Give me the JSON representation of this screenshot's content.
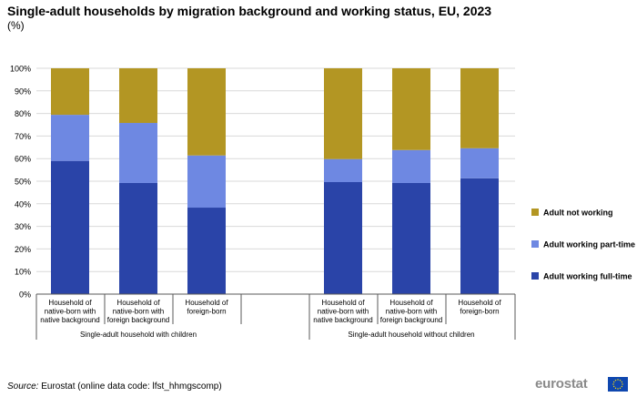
{
  "header": {
    "title": "Single-adult households by migration background and working status, EU, 2023",
    "unit": "(%)"
  },
  "footer": {
    "source_label": "Source:",
    "source_text": " Eurostat (online data code: lfst_hhmgscomp)",
    "logo_text": "eurostat"
  },
  "colors": {
    "full_time": "#2a44a8",
    "part_time": "#6e88e2",
    "not_working": "#b39623",
    "grid": "#d9d9d9",
    "axis": "#595959"
  },
  "chart_data": {
    "type": "bar",
    "stacked": true,
    "ylim": [
      0,
      100
    ],
    "yticks": [
      "0%",
      "10%",
      "20%",
      "30%",
      "40%",
      "50%",
      "60%",
      "70%",
      "80%",
      "90%",
      "100%"
    ],
    "grid": true,
    "legend_position": "right",
    "categories": [
      [
        "Household of",
        "native-born with",
        "native background"
      ],
      [
        "Household of",
        "native-born with",
        "foreign background"
      ],
      [
        "Household of",
        "foreign-born"
      ],
      [
        "Household of",
        "native-born with",
        "native background"
      ],
      [
        "Household of",
        "native-born with",
        "foreign background"
      ],
      [
        "Household of",
        "foreign-born"
      ]
    ],
    "groups": [
      {
        "label": "Single-adult household with children",
        "indices": [
          0,
          1,
          2
        ]
      },
      {
        "label": "Single-adult household without children",
        "indices": [
          3,
          4,
          5
        ]
      }
    ],
    "series": [
      {
        "name": "Adult working full-time",
        "color_key": "full_time",
        "values": [
          59,
          49.2,
          38.3,
          49.6,
          49.2,
          51.3
        ]
      },
      {
        "name": "Adult working part-time",
        "color_key": "part_time",
        "values": [
          20.4,
          26.6,
          23.1,
          10.2,
          14.6,
          13.3
        ]
      },
      {
        "name": "Adult not working",
        "color_key": "not_working",
        "values": [
          20.6,
          24.2,
          38.6,
          40.2,
          36.2,
          35.4
        ]
      }
    ]
  }
}
